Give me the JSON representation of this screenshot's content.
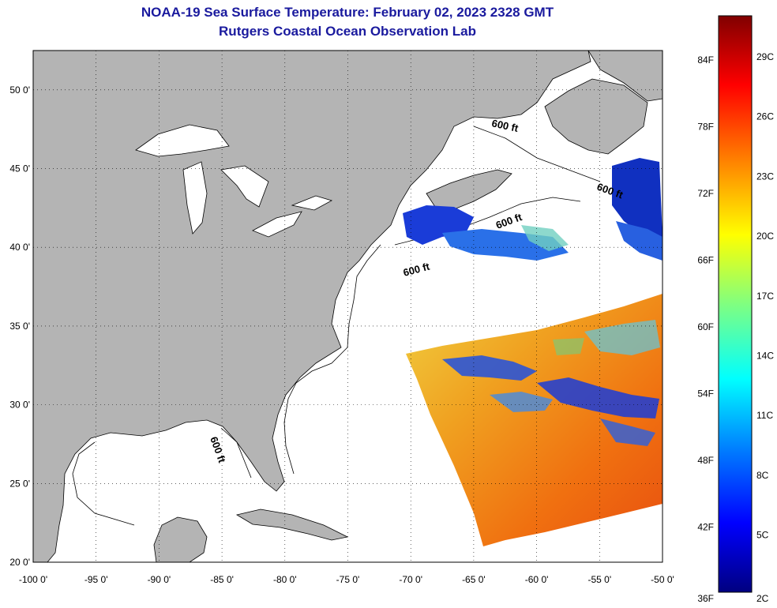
{
  "title": "NOAA-19 Sea Surface Temperature:  February 02, 2023 2328 GMT",
  "subtitle": "Rutgers Coastal Ocean Observation Lab",
  "map": {
    "lon_range": [
      -100,
      -50
    ],
    "lat_range": [
      20,
      52.5
    ],
    "lon_ticks": [
      -100,
      -95,
      -90,
      -85,
      -80,
      -75,
      -70,
      -65,
      -60,
      -55,
      -50
    ],
    "lon_tick_labels": [
      "-100 0'",
      "-95 0'",
      "-90 0'",
      "-85 0'",
      "-80 0'",
      "-75 0'",
      "-70 0'",
      "-65 0'",
      "-60 0'",
      "-55 0'",
      "-50 0'"
    ],
    "lat_ticks": [
      20,
      25,
      30,
      35,
      40,
      45,
      50
    ],
    "lat_tick_labels": [
      "20 0'",
      "25 0'",
      "30 0'",
      "35 0'",
      "40 0'",
      "45 0'",
      "50 0'"
    ],
    "grid": "dotted",
    "land_color": "#b4b4b4",
    "ocean_color": "#ffffff",
    "contour_label": "600 ft"
  },
  "colorbar": {
    "fahrenheit_labels": [
      "84F",
      "78F",
      "72F",
      "66F",
      "60F",
      "54F",
      "48F",
      "42F",
      "36F"
    ],
    "celsius_labels": [
      "29C",
      "26C",
      "23C",
      "20C",
      "17C",
      "14C",
      "11C",
      "8C",
      "5C",
      "2C"
    ],
    "colors": [
      "#000080",
      "#0000ff",
      "#0080ff",
      "#00ffff",
      "#80ff80",
      "#ffff00",
      "#ff8000",
      "#ff0000",
      "#800000"
    ]
  }
}
